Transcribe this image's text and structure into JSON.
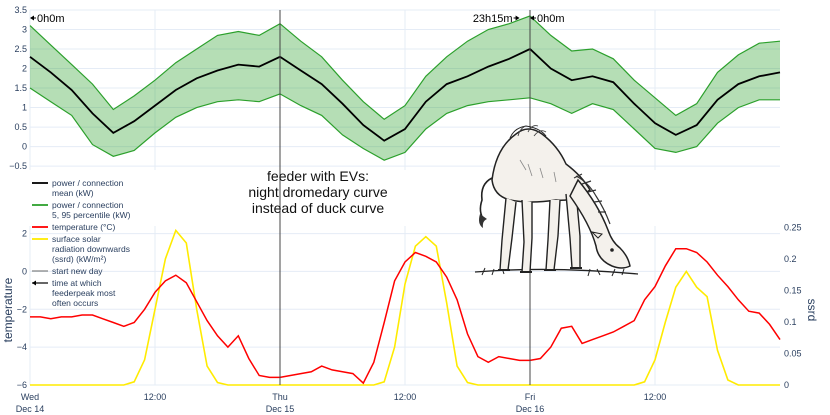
{
  "chart_data": [
    {
      "type": "area",
      "ylim": [
        -0.6,
        3.5
      ],
      "yticks": [
        "3.5",
        "3",
        "2.5",
        "2",
        "1.5",
        "1",
        "0.5",
        "0",
        "−0.5"
      ],
      "x_ticks": [
        {
          "t": 0,
          "line1": "Wed",
          "line2": "Dec 14"
        },
        {
          "t": 12,
          "line1": "12:00",
          "line2": ""
        },
        {
          "t": 24,
          "line1": "Thu",
          "line2": "Dec 15"
        },
        {
          "t": 36,
          "line1": "12:00",
          "line2": ""
        },
        {
          "t": 48,
          "line1": "Fri",
          "line2": "Dec 16"
        },
        {
          "t": 60,
          "line1": "12:00",
          "line2": ""
        }
      ],
      "series": [
        {
          "name": "power / connection mean (kW)",
          "color": "#000000",
          "x": [
            0,
            2,
            4,
            6,
            8,
            10,
            12,
            14,
            16,
            18,
            20,
            22,
            24,
            26,
            28,
            30,
            32,
            34,
            36,
            38,
            40,
            42,
            44,
            46,
            48,
            50,
            52,
            54,
            56,
            58,
            60,
            62,
            64,
            66,
            68,
            70,
            72
          ],
          "y": [
            2.3,
            1.9,
            1.45,
            0.85,
            0.35,
            0.65,
            1.05,
            1.45,
            1.75,
            1.95,
            2.1,
            2.05,
            2.3,
            1.95,
            1.6,
            1.1,
            0.55,
            0.15,
            0.45,
            1.15,
            1.6,
            1.8,
            2.05,
            2.25,
            2.5,
            2.0,
            1.7,
            1.8,
            1.65,
            1.1,
            0.6,
            0.3,
            0.55,
            1.2,
            1.6,
            1.8,
            1.9
          ]
        },
        {
          "name": "power / connection 5, 95 percentile (kW)",
          "color": "#2ca02c",
          "x": [
            0,
            2,
            4,
            6,
            8,
            10,
            12,
            14,
            16,
            18,
            20,
            22,
            24,
            26,
            28,
            30,
            32,
            34,
            36,
            38,
            40,
            42,
            44,
            46,
            48,
            50,
            52,
            54,
            56,
            58,
            60,
            62,
            64,
            66,
            68,
            70,
            72
          ],
          "upper": [
            3.1,
            2.6,
            2.1,
            1.6,
            0.95,
            1.3,
            1.7,
            2.15,
            2.5,
            2.85,
            2.95,
            2.85,
            3.15,
            2.7,
            2.3,
            1.7,
            1.15,
            0.7,
            1.05,
            1.8,
            2.3,
            2.7,
            3.0,
            3.15,
            3.35,
            2.85,
            2.45,
            2.5,
            2.25,
            1.7,
            1.25,
            0.8,
            1.1,
            1.9,
            2.35,
            2.65,
            2.7
          ],
          "lower": [
            1.5,
            1.15,
            0.8,
            0.05,
            -0.25,
            -0.1,
            0.35,
            0.75,
            1.0,
            1.15,
            1.2,
            1.15,
            1.35,
            1.05,
            0.8,
            0.3,
            -0.05,
            -0.35,
            -0.15,
            0.45,
            0.85,
            1.05,
            1.15,
            1.2,
            1.25,
            1.1,
            0.85,
            1.1,
            0.95,
            0.45,
            -0.05,
            -0.15,
            0.0,
            0.6,
            1.0,
            1.2,
            1.2
          ]
        }
      ],
      "annotations": [
        {
          "t": 0,
          "text": "0h0m"
        },
        {
          "t": 47,
          "text": "23h15m"
        },
        {
          "t": 48,
          "text": "0h0m"
        }
      ],
      "vlines": [
        24,
        48
      ]
    },
    {
      "type": "line",
      "ylabel": "temperature",
      "y2label": "ssrd",
      "ylim": [
        -6,
        2.4
      ],
      "yticks": [
        "2",
        "0",
        "−2",
        "−4",
        "−6"
      ],
      "y2lim": [
        0,
        0.252
      ],
      "y2ticks": [
        "0.25",
        "0.2",
        "0.15",
        "0.1",
        "0.05",
        "0"
      ],
      "x_ticks": [
        {
          "t": 0,
          "line1": "Wed",
          "line2": "Dec 14"
        },
        {
          "t": 12,
          "line1": "12:00",
          "line2": ""
        },
        {
          "t": 24,
          "line1": "Thu",
          "line2": "Dec 15"
        },
        {
          "t": 36,
          "line1": "12:00",
          "line2": ""
        },
        {
          "t": 48,
          "line1": "Fri",
          "line2": "Dec 16"
        },
        {
          "t": 60,
          "line1": "12:00",
          "line2": ""
        }
      ],
      "series": [
        {
          "name": "temperature (°C)",
          "color": "#ff0000",
          "axis": "y",
          "x": [
            0,
            1,
            2,
            3,
            4,
            5,
            6,
            7,
            8,
            9,
            10,
            11,
            12,
            13,
            14,
            15,
            16,
            17,
            18,
            19,
            20,
            21,
            22,
            23,
            24,
            25,
            26,
            27,
            28,
            29,
            30,
            31,
            32,
            33,
            34,
            35,
            36,
            37,
            38,
            39,
            40,
            41,
            42,
            43,
            44,
            45,
            46,
            47,
            48,
            49,
            50,
            51,
            52,
            53,
            54,
            55,
            56,
            57,
            58,
            59,
            60,
            61,
            62,
            63,
            64,
            65,
            66,
            67,
            68,
            69,
            70,
            71,
            72
          ],
          "y": [
            -2.4,
            -2.4,
            -2.5,
            -2.4,
            -2.4,
            -2.3,
            -2.3,
            -2.5,
            -2.7,
            -2.9,
            -2.7,
            -2.0,
            -1.1,
            -0.5,
            -0.2,
            -0.6,
            -1.6,
            -2.6,
            -3.4,
            -4.0,
            -3.4,
            -4.6,
            -5.5,
            -5.6,
            -5.6,
            -5.5,
            -5.4,
            -5.3,
            -5.0,
            -5.2,
            -5.3,
            -5.4,
            -5.9,
            -4.8,
            -2.7,
            -0.5,
            0.5,
            1.0,
            0.8,
            0.5,
            -0.3,
            -1.5,
            -3.3,
            -4.5,
            -4.8,
            -4.5,
            -4.6,
            -4.7,
            -4.7,
            -4.6,
            -4.0,
            -3.0,
            -2.9,
            -3.8,
            -3.6,
            -3.4,
            -3.2,
            -2.9,
            -2.6,
            -1.5,
            -0.8,
            0.3,
            1.2,
            1.2,
            1.0,
            0.5,
            -0.2,
            -0.8,
            -1.5,
            -2.1,
            -2.2,
            -2.8,
            -3.6
          ]
        },
        {
          "name": "surface solar radiation downwards (ssrd) (kW/m²)",
          "color": "#ffeb00",
          "axis": "y2",
          "x": [
            0,
            1,
            2,
            3,
            4,
            5,
            6,
            7,
            8,
            9,
            10,
            11,
            12,
            13,
            14,
            15,
            16,
            17,
            18,
            19,
            20,
            21,
            22,
            23,
            24,
            25,
            26,
            27,
            28,
            29,
            30,
            31,
            32,
            33,
            34,
            35,
            36,
            37,
            38,
            39,
            40,
            41,
            42,
            43,
            44,
            45,
            46,
            47,
            48,
            49,
            50,
            51,
            52,
            53,
            54,
            55,
            56,
            57,
            58,
            59,
            60,
            61,
            62,
            63,
            64,
            65,
            66,
            67,
            68,
            69,
            70,
            71,
            72
          ],
          "y": [
            0,
            0,
            0,
            0,
            0,
            0,
            0,
            0,
            0,
            0,
            0.005,
            0.04,
            0.12,
            0.2,
            0.245,
            0.225,
            0.12,
            0.03,
            0.004,
            0,
            0,
            0,
            0,
            0,
            0,
            0,
            0,
            0,
            0,
            0,
            0,
            0,
            0,
            0,
            0.005,
            0.06,
            0.16,
            0.22,
            0.235,
            0.22,
            0.13,
            0.03,
            0.004,
            0,
            0,
            0,
            0,
            0,
            0,
            0,
            0,
            0,
            0,
            0,
            0,
            0,
            0,
            0,
            0,
            0.005,
            0.04,
            0.1,
            0.155,
            0.18,
            0.155,
            0.14,
            0.055,
            0.008,
            0,
            0,
            0,
            0,
            0
          ]
        },
        {
          "name": "start new day",
          "color": "#444444"
        },
        {
          "name": "time at which feederpeak most often occurs",
          "color": "#444444"
        }
      ],
      "vlines": [
        24,
        48
      ]
    }
  ],
  "legend": [
    {
      "lines": [
        "power / connection",
        "mean (kW)"
      ],
      "color": "#000000",
      "kind": "line"
    },
    {
      "lines": [
        "power / connection",
        "5, 95 percentile (kW)"
      ],
      "color": "#2ca02c",
      "kind": "line"
    },
    {
      "lines": [
        "temperature (°C)"
      ],
      "color": "#ff0000",
      "kind": "line"
    },
    {
      "lines": [
        "surface solar",
        "radiation downwards",
        "(ssrd) (kW/m²)"
      ],
      "color": "#ffeb00",
      "kind": "line"
    },
    {
      "lines": [
        "start new day"
      ],
      "color": "#666666",
      "kind": "line"
    },
    {
      "lines": [
        "time at which",
        "feederpeak most",
        "often occurs"
      ],
      "color": "#000000",
      "kind": "arrow"
    }
  ],
  "center_note": [
    "feeder with EVs:",
    "night dromedary curve",
    "instead of duck curve"
  ],
  "colors": {
    "grid": "#e5ecf6",
    "tick": "#2a3f5f",
    "band": "#2ca02c",
    "mean": "#000000",
    "temp": "#ff0000",
    "ssrd": "#ffeb00"
  },
  "illustration": {
    "subject": "camel-grazing-sketch"
  }
}
